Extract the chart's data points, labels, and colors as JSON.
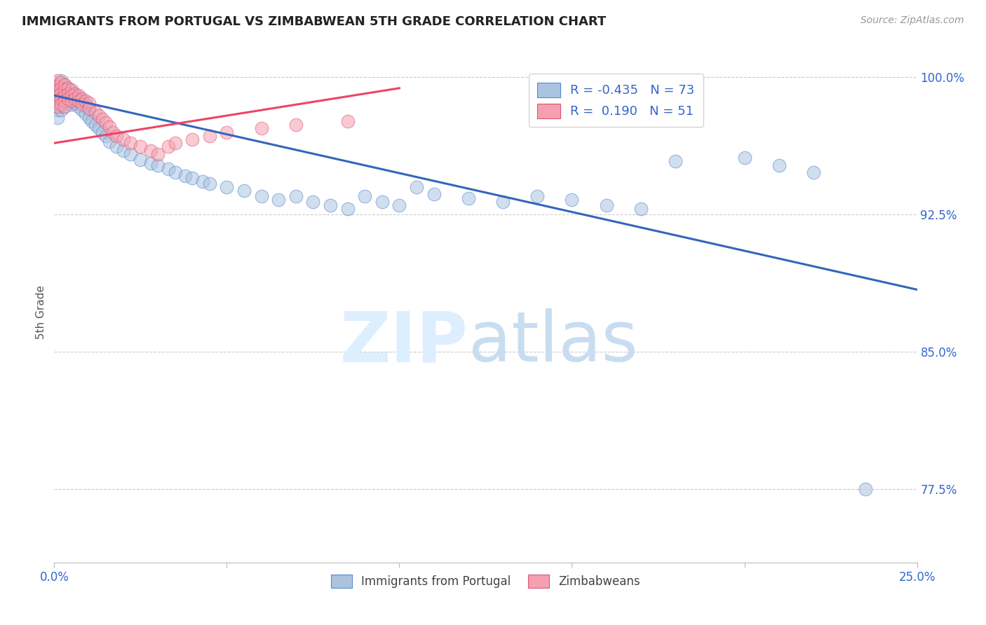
{
  "title": "IMMIGRANTS FROM PORTUGAL VS ZIMBABWEAN 5TH GRADE CORRELATION CHART",
  "source": "Source: ZipAtlas.com",
  "ylabel": "5th Grade",
  "xlim": [
    0.0,
    0.25
  ],
  "ylim": [
    0.735,
    1.008
  ],
  "yticks": [
    0.775,
    0.85,
    0.925,
    1.0
  ],
  "ytick_labels": [
    "77.5%",
    "85.0%",
    "92.5%",
    "100.0%"
  ],
  "xticks": [
    0.0,
    0.05,
    0.1,
    0.15,
    0.2,
    0.25
  ],
  "xtick_labels": [
    "0.0%",
    "",
    "",
    "",
    "",
    "25.0%"
  ],
  "blue_color": "#aac4e0",
  "pink_color": "#f4a0b0",
  "blue_edge_color": "#5588cc",
  "pink_edge_color": "#dd5577",
  "blue_line_color": "#3366bb",
  "pink_line_color": "#ee4466",
  "R_blue": -0.435,
  "N_blue": 73,
  "R_pink": 0.19,
  "N_pink": 51,
  "blue_line_x": [
    0.0,
    0.25
  ],
  "blue_line_y": [
    0.99,
    0.884
  ],
  "pink_line_x": [
    0.0,
    0.1
  ],
  "pink_line_y": [
    0.964,
    0.994
  ],
  "blue_x": [
    0.001,
    0.001,
    0.001,
    0.001,
    0.001,
    0.001,
    0.002,
    0.002,
    0.002,
    0.002,
    0.002,
    0.003,
    0.003,
    0.003,
    0.003,
    0.004,
    0.004,
    0.004,
    0.005,
    0.005,
    0.005,
    0.006,
    0.006,
    0.007,
    0.007,
    0.008,
    0.008,
    0.009,
    0.009,
    0.01,
    0.01,
    0.011,
    0.012,
    0.013,
    0.014,
    0.015,
    0.016,
    0.018,
    0.02,
    0.022,
    0.025,
    0.028,
    0.03,
    0.033,
    0.035,
    0.038,
    0.04,
    0.043,
    0.045,
    0.05,
    0.055,
    0.06,
    0.065,
    0.07,
    0.075,
    0.08,
    0.085,
    0.09,
    0.095,
    0.1,
    0.105,
    0.11,
    0.12,
    0.13,
    0.14,
    0.15,
    0.16,
    0.17,
    0.18,
    0.2,
    0.21,
    0.22,
    0.235
  ],
  "blue_y": [
    0.995,
    0.992,
    0.988,
    0.985,
    0.982,
    0.978,
    0.998,
    0.994,
    0.99,
    0.986,
    0.982,
    0.996,
    0.993,
    0.988,
    0.984,
    0.994,
    0.99,
    0.987,
    0.992,
    0.988,
    0.985,
    0.99,
    0.986,
    0.989,
    0.984,
    0.987,
    0.982,
    0.985,
    0.98,
    0.983,
    0.978,
    0.976,
    0.974,
    0.972,
    0.97,
    0.968,
    0.965,
    0.962,
    0.96,
    0.958,
    0.955,
    0.953,
    0.952,
    0.95,
    0.948,
    0.946,
    0.945,
    0.943,
    0.942,
    0.94,
    0.938,
    0.935,
    0.933,
    0.935,
    0.932,
    0.93,
    0.928,
    0.935,
    0.932,
    0.93,
    0.94,
    0.936,
    0.934,
    0.932,
    0.935,
    0.933,
    0.93,
    0.928,
    0.954,
    0.956,
    0.952,
    0.948,
    0.775
  ],
  "pink_x": [
    0.001,
    0.001,
    0.001,
    0.001,
    0.001,
    0.001,
    0.002,
    0.002,
    0.002,
    0.002,
    0.002,
    0.003,
    0.003,
    0.003,
    0.003,
    0.003,
    0.004,
    0.004,
    0.004,
    0.005,
    0.005,
    0.005,
    0.006,
    0.006,
    0.007,
    0.007,
    0.008,
    0.008,
    0.009,
    0.01,
    0.01,
    0.012,
    0.013,
    0.014,
    0.015,
    0.016,
    0.017,
    0.018,
    0.02,
    0.022,
    0.025,
    0.028,
    0.03,
    0.033,
    0.035,
    0.04,
    0.045,
    0.05,
    0.06,
    0.07,
    0.085
  ],
  "pink_y": [
    0.998,
    0.995,
    0.993,
    0.99,
    0.987,
    0.984,
    0.997,
    0.994,
    0.991,
    0.988,
    0.985,
    0.996,
    0.993,
    0.99,
    0.987,
    0.984,
    0.994,
    0.991,
    0.988,
    0.993,
    0.99,
    0.987,
    0.991,
    0.988,
    0.99,
    0.987,
    0.988,
    0.985,
    0.987,
    0.986,
    0.983,
    0.981,
    0.979,
    0.977,
    0.975,
    0.973,
    0.97,
    0.968,
    0.966,
    0.964,
    0.962,
    0.96,
    0.958,
    0.962,
    0.964,
    0.966,
    0.968,
    0.97,
    0.972,
    0.974,
    0.976
  ]
}
